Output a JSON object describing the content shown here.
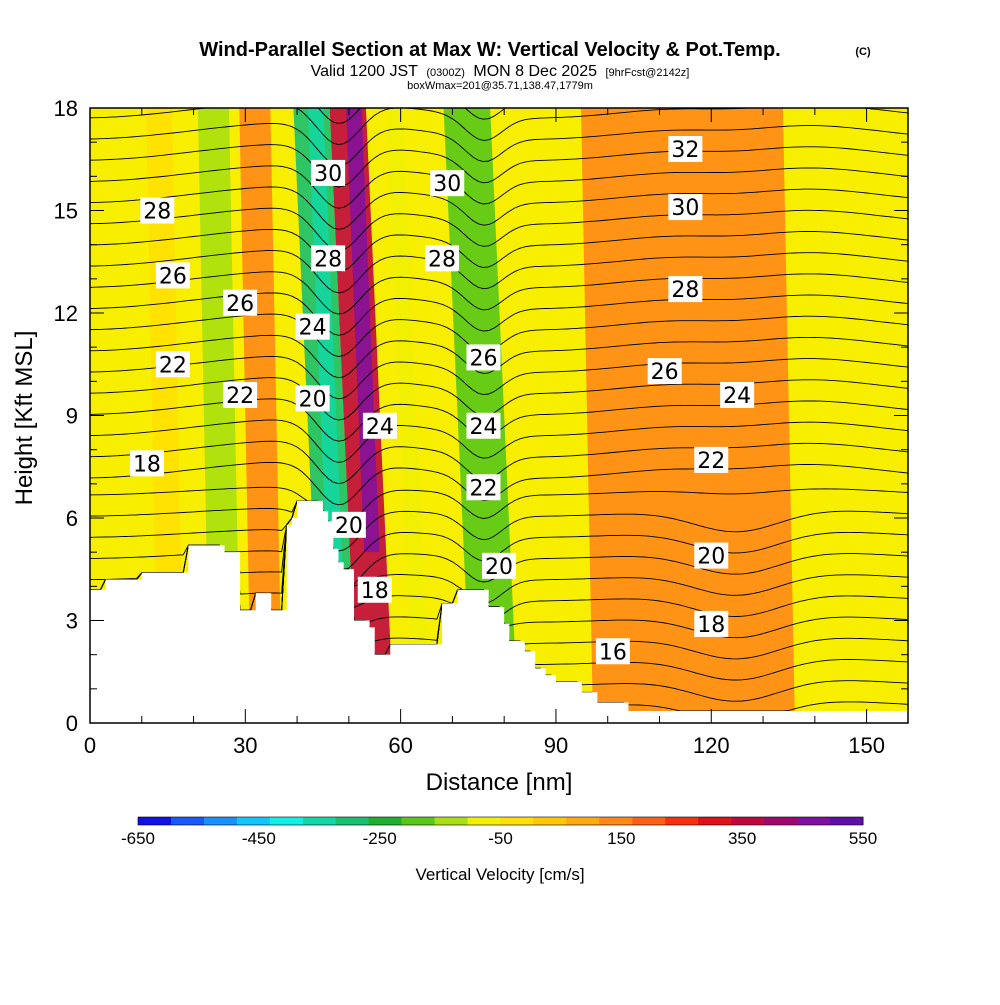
{
  "title": {
    "main": "Wind-Parallel Section at Max W: Vertical Velocity & Pot.Temp.",
    "copyright": "(C)",
    "valid_prefix": "Valid 1200 JST",
    "valid_utc": "(0300Z)",
    "valid_date": "MON 8 Dec 2025",
    "forecast": "[9hrFcst@2142z]",
    "box_info": "boxWmax=201@35.71,138.47,1779m"
  },
  "colorbar": {
    "label": "Vertical Velocity [cm/s]",
    "ticks": [
      "-650",
      "-450",
      "-250",
      "-50",
      "150",
      "350",
      "550"
    ],
    "colors": [
      "#1010e8",
      "#1858ff",
      "#1890ff",
      "#10c8ff",
      "#10f0e8",
      "#10d8a8",
      "#18c070",
      "#20b030",
      "#58c818",
      "#a8e010",
      "#f0f000",
      "#ffe000",
      "#ffc800",
      "#ffa810",
      "#ff8818",
      "#ff6018",
      "#f83010",
      "#e01018",
      "#c00840",
      "#a00870",
      "#8010a0",
      "#6010a8"
    ]
  },
  "chart_data": {
    "type": "heatmap",
    "xlabel": "Distance [nm]",
    "ylabel": "Height [Kft MSL]",
    "xlim": [
      0,
      158
    ],
    "ylim": [
      0,
      18
    ],
    "xticks": [
      "0",
      "30",
      "60",
      "90",
      "120",
      "150"
    ],
    "yticks": [
      "0",
      "3",
      "6",
      "9",
      "12",
      "15",
      "18"
    ],
    "terrain_kft": [
      [
        0,
        3.9
      ],
      [
        3,
        3.9
      ],
      [
        3,
        4.2
      ],
      [
        10,
        4.2
      ],
      [
        10,
        4.4
      ],
      [
        19,
        4.4
      ],
      [
        19,
        5.2
      ],
      [
        26,
        5.2
      ],
      [
        26,
        5.0
      ],
      [
        29,
        5.0
      ],
      [
        29,
        3.3
      ],
      [
        32,
        3.3
      ],
      [
        32,
        3.8
      ],
      [
        35,
        3.8
      ],
      [
        35,
        3.3
      ],
      [
        38,
        3.3
      ],
      [
        38,
        5.8
      ],
      [
        39,
        5.8
      ],
      [
        39,
        6.0
      ],
      [
        40,
        6.0
      ],
      [
        40,
        6.5
      ],
      [
        45,
        6.5
      ],
      [
        45,
        6.2
      ],
      [
        46,
        6.2
      ],
      [
        46,
        5.9
      ],
      [
        47,
        5.9
      ],
      [
        47,
        5.1
      ],
      [
        48,
        5.1
      ],
      [
        48,
        4.7
      ],
      [
        49,
        4.7
      ],
      [
        49,
        4.5
      ],
      [
        51,
        4.5
      ],
      [
        51,
        3.0
      ],
      [
        54,
        3.0
      ],
      [
        54,
        2.8
      ],
      [
        55,
        2.8
      ],
      [
        55,
        2.0
      ],
      [
        58,
        2.0
      ],
      [
        58,
        2.3
      ],
      [
        68,
        2.3
      ],
      [
        68,
        3.5
      ],
      [
        71,
        3.5
      ],
      [
        71,
        3.9
      ],
      [
        77,
        3.9
      ],
      [
        77,
        3.4
      ],
      [
        80,
        3.4
      ],
      [
        80,
        2.9
      ],
      [
        81,
        2.9
      ],
      [
        81,
        2.4
      ],
      [
        84,
        2.4
      ],
      [
        84,
        2.1
      ],
      [
        86,
        2.1
      ],
      [
        86,
        1.6
      ],
      [
        88,
        1.6
      ],
      [
        88,
        1.4
      ],
      [
        90,
        1.4
      ],
      [
        90,
        1.2
      ],
      [
        95,
        1.2
      ],
      [
        95,
        0.9
      ],
      [
        98,
        0.9
      ],
      [
        98,
        0.6
      ],
      [
        104,
        0.6
      ],
      [
        104,
        0.35
      ],
      [
        158,
        0.35
      ]
    ],
    "vv_fill_cm_s": [
      {
        "xrange": [
          12,
          17
        ],
        "value": -50
      },
      {
        "xrange": [
          22,
          28
        ],
        "value": -150
      },
      {
        "xrange": [
          30,
          36
        ],
        "value": 150
      },
      {
        "xrange": [
          42,
          49
        ],
        "value": -300
      },
      {
        "xrange": [
          49,
          56
        ],
        "value": 350
      },
      {
        "xrange": [
          60,
          63
        ],
        "value": -100
      },
      {
        "xrange": [
          71,
          80
        ],
        "value": -200
      },
      {
        "xrange": [
          96,
          135
        ],
        "value": 120
      }
    ],
    "theta_contours_C": [
      {
        "value": 16,
        "label_x": 101,
        "label_y": 2.1
      },
      {
        "value": 18,
        "label_x": 11,
        "label_y": 7.6
      },
      {
        "value": 18,
        "label_x": 55,
        "label_y": 3.9
      },
      {
        "value": 18,
        "label_x": 120,
        "label_y": 2.9
      },
      {
        "value": 20,
        "label_x": 43,
        "label_y": 9.5
      },
      {
        "value": 20,
        "label_x": 50,
        "label_y": 5.8
      },
      {
        "value": 20,
        "label_x": 79,
        "label_y": 4.6
      },
      {
        "value": 20,
        "label_x": 120,
        "label_y": 4.9
      },
      {
        "value": 22,
        "label_x": 16,
        "label_y": 10.5
      },
      {
        "value": 22,
        "label_x": 29,
        "label_y": 9.6
      },
      {
        "value": 22,
        "label_x": 76,
        "label_y": 6.9
      },
      {
        "value": 22,
        "label_x": 120,
        "label_y": 7.7
      },
      {
        "value": 24,
        "label_x": 43,
        "label_y": 11.6
      },
      {
        "value": 24,
        "label_x": 56,
        "label_y": 8.7
      },
      {
        "value": 24,
        "label_x": 76,
        "label_y": 8.7
      },
      {
        "value": 24,
        "label_x": 125,
        "label_y": 9.6
      },
      {
        "value": 26,
        "label_x": 16,
        "label_y": 13.1
      },
      {
        "value": 26,
        "label_x": 29,
        "label_y": 12.3
      },
      {
        "value": 26,
        "label_x": 76,
        "label_y": 10.7
      },
      {
        "value": 26,
        "label_x": 111,
        "label_y": 10.3
      },
      {
        "value": 28,
        "label_x": 13,
        "label_y": 15.0
      },
      {
        "value": 28,
        "label_x": 46,
        "label_y": 13.6
      },
      {
        "value": 28,
        "label_x": 68,
        "label_y": 13.6
      },
      {
        "value": 28,
        "label_x": 115,
        "label_y": 12.7
      },
      {
        "value": 30,
        "label_x": 46,
        "label_y": 16.1
      },
      {
        "value": 30,
        "label_x": 69,
        "label_y": 15.8
      },
      {
        "value": 30,
        "label_x": 115,
        "label_y": 15.1
      },
      {
        "value": 32,
        "label_x": 115,
        "label_y": 16.8
      }
    ]
  }
}
